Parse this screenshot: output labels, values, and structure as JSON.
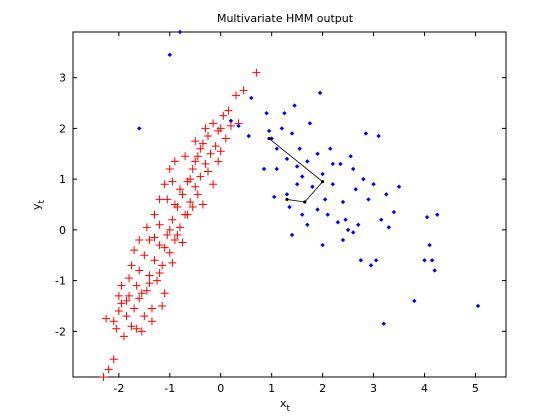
{
  "chart_data": {
    "type": "scatter",
    "title": "Multivariate HMM output",
    "xlabel": "x",
    "xlabel_sub": "t",
    "ylabel": "y",
    "ylabel_sub": "t",
    "xlim": [
      -2.9,
      5.6
    ],
    "ylim": [
      -2.9,
      3.9
    ],
    "xticks": [
      -2,
      -1,
      0,
      1,
      2,
      3,
      4,
      5
    ],
    "yticks": [
      -2,
      -1,
      0,
      1,
      2,
      3
    ],
    "grid": false,
    "legend": "none",
    "colors": {
      "series_a": "#ff0000",
      "series_b": "#0000ff",
      "path": "#000000",
      "axes": "#000000"
    },
    "series": [
      {
        "marker": "plus",
        "color": "#ff0000",
        "points": [
          [
            -2.3,
            -2.9
          ],
          [
            -2.2,
            -2.75
          ],
          [
            -2.1,
            -2.55
          ],
          [
            -2.25,
            -1.75
          ],
          [
            -2.1,
            -1.8
          ],
          [
            -2.05,
            -1.95
          ],
          [
            -2.0,
            -1.6
          ],
          [
            -1.95,
            -1.45
          ],
          [
            -1.85,
            -1.7
          ],
          [
            -1.8,
            -1.3
          ],
          [
            -1.7,
            -1.55
          ],
          [
            -1.75,
            -1.9
          ],
          [
            -1.65,
            -1.1
          ],
          [
            -1.6,
            -1.35
          ],
          [
            -1.5,
            -1.7
          ],
          [
            -1.55,
            -2.0
          ],
          [
            -1.45,
            -1.2
          ],
          [
            -1.4,
            -0.9
          ],
          [
            -1.35,
            -1.55
          ],
          [
            -1.3,
            -0.6
          ],
          [
            -1.25,
            -1.0
          ],
          [
            -1.2,
            -0.3
          ],
          [
            -1.15,
            -0.7
          ],
          [
            -1.1,
            -1.25
          ],
          [
            -1.05,
            -0.1
          ],
          [
            -1.0,
            -0.45
          ],
          [
            -0.95,
            0.2
          ],
          [
            -0.9,
            -0.2
          ],
          [
            -0.85,
            0.45
          ],
          [
            -0.8,
            0.05
          ],
          [
            -0.75,
            0.7
          ],
          [
            -0.7,
            0.3
          ],
          [
            -0.65,
            0.95
          ],
          [
            -0.6,
            0.55
          ],
          [
            -0.55,
            1.2
          ],
          [
            -0.5,
            0.85
          ],
          [
            -0.45,
            1.45
          ],
          [
            -0.4,
            1.05
          ],
          [
            -0.35,
            1.7
          ],
          [
            -0.3,
            1.3
          ],
          [
            -0.25,
            1.85
          ],
          [
            -0.2,
            1.5
          ],
          [
            -0.15,
            2.1
          ],
          [
            -0.1,
            1.65
          ],
          [
            -0.05,
            1.95
          ],
          [
            0.0,
            1.55
          ],
          [
            0.05,
            2.25
          ],
          [
            0.1,
            1.8
          ],
          [
            0.15,
            2.35
          ],
          [
            0.2,
            2.05
          ],
          [
            0.3,
            2.65
          ],
          [
            0.35,
            2.1
          ],
          [
            0.45,
            2.75
          ],
          [
            0.7,
            3.1
          ],
          [
            -1.3,
            0.3
          ],
          [
            -1.2,
            0.6
          ],
          [
            -1.1,
            0.9
          ],
          [
            -1.0,
            1.2
          ],
          [
            -0.9,
            1.35
          ],
          [
            -1.4,
            -0.2
          ],
          [
            -1.5,
            -0.5
          ],
          [
            -1.6,
            -0.8
          ],
          [
            -1.7,
            -0.4
          ],
          [
            -1.3,
            -0.15
          ],
          [
            -1.2,
            0.1
          ],
          [
            -0.8,
            0.8
          ],
          [
            -0.6,
            1.0
          ],
          [
            -0.4,
            1.6
          ],
          [
            -0.7,
            1.45
          ],
          [
            -0.5,
            1.75
          ],
          [
            -0.3,
            2.0
          ],
          [
            -0.9,
            0.5
          ],
          [
            -1.0,
            0.0
          ],
          [
            -1.1,
            -0.35
          ],
          [
            -1.2,
            -0.85
          ],
          [
            -1.4,
            -1.05
          ],
          [
            -1.55,
            -1.25
          ],
          [
            -1.85,
            -1.4
          ],
          [
            -1.95,
            -1.1
          ],
          [
            -1.6,
            -0.2
          ],
          [
            -1.45,
            0.05
          ],
          [
            -1.75,
            -0.7
          ],
          [
            -0.65,
            0.3
          ],
          [
            -0.45,
            0.7
          ],
          [
            -0.25,
            1.15
          ],
          [
            -0.05,
            1.35
          ],
          [
            -0.15,
            0.9
          ],
          [
            -0.55,
            0.45
          ],
          [
            -0.85,
            -0.1
          ],
          [
            -0.95,
            -0.65
          ],
          [
            -1.15,
            -1.5
          ],
          [
            -1.35,
            -1.8
          ],
          [
            -1.65,
            -1.95
          ],
          [
            -1.9,
            -2.1
          ],
          [
            -2.0,
            -1.3
          ],
          [
            -1.8,
            -0.95
          ],
          [
            -0.35,
            0.5
          ],
          [
            -0.75,
            -0.25
          ],
          [
            -1.05,
            0.6
          ],
          [
            -0.95,
            0.95
          ],
          [
            -0.5,
            1.35
          ],
          [
            0.0,
            2.0
          ]
        ]
      },
      {
        "marker": "dot",
        "color": "#0000ff",
        "points": [
          [
            -0.8,
            3.9
          ],
          [
            -1.0,
            3.45
          ],
          [
            -1.6,
            2.0
          ],
          [
            0.2,
            2.15
          ],
          [
            0.35,
            2.05
          ],
          [
            0.6,
            2.6
          ],
          [
            0.55,
            1.85
          ],
          [
            0.9,
            2.3
          ],
          [
            0.95,
            1.95
          ],
          [
            1.0,
            1.8
          ],
          [
            1.1,
            1.6
          ],
          [
            1.2,
            2.0
          ],
          [
            1.3,
            1.4
          ],
          [
            1.25,
            2.3
          ],
          [
            1.4,
            1.9
          ],
          [
            1.5,
            1.25
          ],
          [
            1.45,
            2.45
          ],
          [
            1.55,
            1.6
          ],
          [
            1.6,
            1.05
          ],
          [
            1.7,
            1.35
          ],
          [
            1.75,
            2.1
          ],
          [
            1.8,
            0.85
          ],
          [
            1.9,
            1.5
          ],
          [
            1.95,
            2.7
          ],
          [
            2.0,
            1.1
          ],
          [
            2.05,
            0.6
          ],
          [
            2.1,
            0.3
          ],
          [
            2.15,
            1.6
          ],
          [
            2.2,
            0.9
          ],
          [
            2.3,
            0.15
          ],
          [
            2.35,
            1.3
          ],
          [
            2.4,
            0.55
          ],
          [
            2.45,
            0.2
          ],
          [
            2.5,
            0.0
          ],
          [
            2.55,
            1.45
          ],
          [
            2.6,
            -0.05
          ],
          [
            2.65,
            0.8
          ],
          [
            2.7,
            0.1
          ],
          [
            2.75,
            -0.6
          ],
          [
            2.8,
            1.0
          ],
          [
            2.85,
            1.9
          ],
          [
            2.9,
            0.6
          ],
          [
            2.95,
            -0.7
          ],
          [
            3.0,
            0.9
          ],
          [
            3.05,
            -0.6
          ],
          [
            3.1,
            1.85
          ],
          [
            3.15,
            0.2
          ],
          [
            3.2,
            -1.85
          ],
          [
            3.25,
            0.7
          ],
          [
            1.6,
            0.3
          ],
          [
            1.3,
            0.7
          ],
          [
            1.1,
            1.2
          ],
          [
            1.5,
            0.9
          ],
          [
            1.9,
            0.4
          ],
          [
            2.2,
            1.3
          ],
          [
            2.6,
            1.2
          ],
          [
            3.4,
            0.35
          ],
          [
            3.5,
            0.85
          ],
          [
            1.4,
            -0.1
          ],
          [
            2.0,
            -0.3
          ],
          [
            3.3,
            0.05
          ],
          [
            3.8,
            -1.4
          ],
          [
            4.0,
            -0.6
          ],
          [
            4.05,
            0.25
          ],
          [
            4.1,
            -0.3
          ],
          [
            4.15,
            -0.6
          ],
          [
            4.2,
            -0.8
          ],
          [
            4.25,
            0.3
          ],
          [
            5.05,
            -1.5
          ],
          [
            0.85,
            1.2
          ],
          [
            1.05,
            0.65
          ],
          [
            1.35,
            0.45
          ],
          [
            1.7,
            0.1
          ],
          [
            2.4,
            -0.2
          ]
        ]
      }
    ],
    "path": [
      [
        0.95,
        1.8
      ],
      [
        2.0,
        0.95
      ],
      [
        1.65,
        0.55
      ],
      [
        1.3,
        0.6
      ]
    ]
  }
}
